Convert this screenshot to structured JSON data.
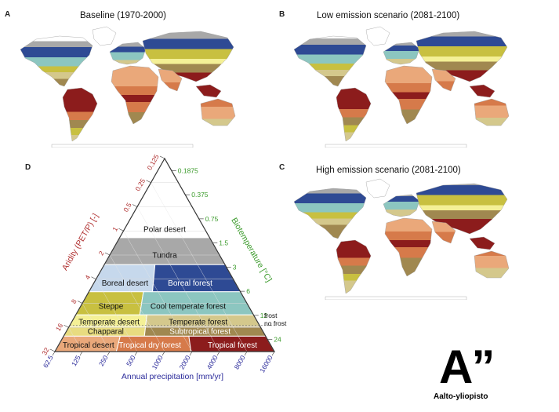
{
  "panels": {
    "a": {
      "letter": "A",
      "title": "Baseline (1970-2000)"
    },
    "b": {
      "letter": "B",
      "title": "Low emission scenario (2081-2100)"
    },
    "c": {
      "letter": "C",
      "title": "High emission scenario (2081-2100)"
    },
    "d": {
      "letter": "D"
    }
  },
  "triangle": {
    "left_axis_label": "Aridity (PET/P) [-]",
    "right_axis_label": "Biotemperature [°C]",
    "bottom_axis_label": "Annual precipitation [mm/yr]",
    "aridity_ticks": [
      "0.125",
      "0.25",
      "0.5",
      "1",
      "2",
      "4",
      "8",
      "16",
      "32"
    ],
    "biotemp_ticks": [
      "0.1875",
      "0.375",
      "0.75",
      "1.5",
      "3",
      "6",
      "12",
      "24"
    ],
    "precip_ticks": [
      "62.5",
      "125",
      "250",
      "500",
      "1000",
      "2000",
      "4000",
      "8000",
      "16000"
    ],
    "frost_label": "frost",
    "no_frost_label": "no frost",
    "axis_colors": {
      "aridity": "#b03030",
      "biotemperature": "#3a9a2a",
      "precipitation": "#2a2a9a"
    },
    "zones": [
      {
        "name": "Polar desert",
        "color": "#ffffff"
      },
      {
        "name": "Tundra",
        "color": "#a8a8a8"
      },
      {
        "name": "Boreal desert",
        "color": "#c6d8ec"
      },
      {
        "name": "Boreal forest",
        "color": "#2e4a94"
      },
      {
        "name": "Steppe",
        "color": "#c8c040"
      },
      {
        "name": "Cool temperate forest",
        "color": "#8cc6c0"
      },
      {
        "name": "Temperate desert",
        "color": "#f4f096"
      },
      {
        "name": "Chapparal",
        "color": "#e8dc80"
      },
      {
        "name": "Temperate forest",
        "color": "#d4c88c"
      },
      {
        "name": "Subtropical forest",
        "color": "#a08850"
      },
      {
        "name": "Tropical desert",
        "color": "#eaa87a"
      },
      {
        "name": "Tropical dry forest",
        "color": "#d67a4a"
      },
      {
        "name": "Tropical forest",
        "color": "#8c1c1c"
      }
    ]
  },
  "logo": {
    "mark": "A”",
    "text": "Aalto-yliopisto"
  }
}
